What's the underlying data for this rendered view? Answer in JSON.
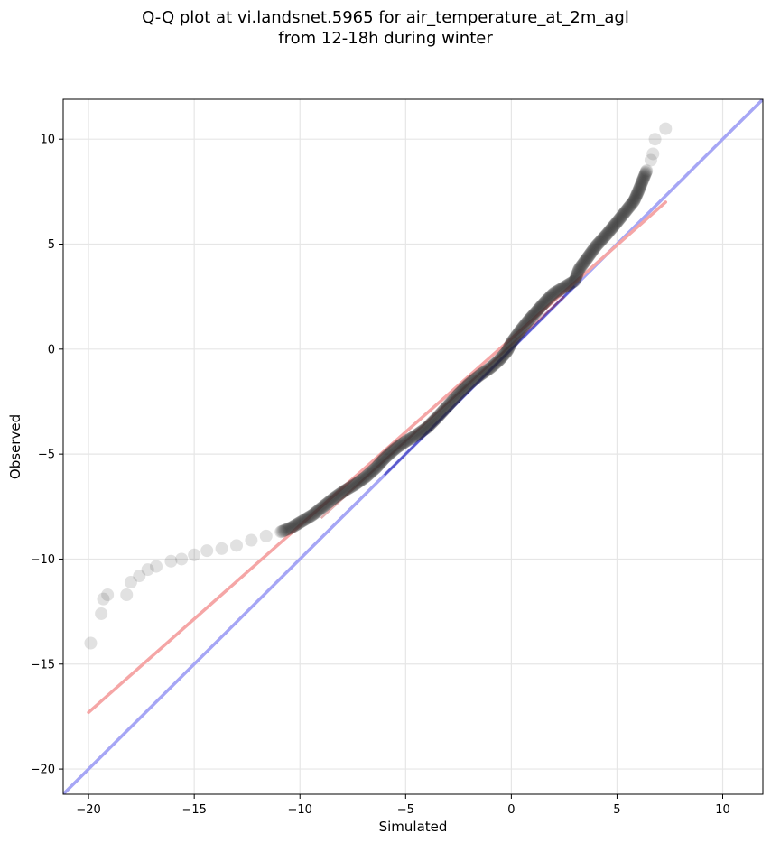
{
  "chart_data": {
    "type": "scatter",
    "title_line1": "Q-Q plot at vi.landsnet.5965 for air_temperature_at_2m_agl",
    "title_line2": "from 12-18h during winter",
    "xlabel": "Simulated",
    "ylabel": "Observed",
    "xlim": [
      -21.2,
      11.9
    ],
    "ylim": [
      -21.2,
      11.9
    ],
    "xticks": [
      -20,
      -15,
      -10,
      -5,
      0,
      5,
      10
    ],
    "yticks": [
      -20,
      -15,
      -10,
      -5,
      0,
      5,
      10
    ],
    "xtick_labels": [
      "−20",
      "−15",
      "−10",
      "−5",
      "0",
      "5",
      "10"
    ],
    "ytick_labels": [
      "−20",
      "−15",
      "−10",
      "−5",
      "0",
      "5",
      "10"
    ],
    "grid": true,
    "colors": {
      "points": "#2b2b2b",
      "identity_line": "#a6a6f5",
      "fit_line": "#f5a6a6",
      "central_line": "#1a1aaa",
      "central_fit": "#aa1a1a"
    },
    "quantile_points": [
      [
        -19.9,
        -14.0
      ],
      [
        -19.4,
        -12.6
      ],
      [
        -19.3,
        -11.9
      ],
      [
        -19.1,
        -11.7
      ],
      [
        -18.2,
        -11.7
      ],
      [
        -18.0,
        -11.1
      ],
      [
        -17.6,
        -10.8
      ],
      [
        -17.2,
        -10.5
      ],
      [
        -16.8,
        -10.35
      ],
      [
        -16.1,
        -10.1
      ],
      [
        -15.6,
        -10.0
      ],
      [
        -15.0,
        -9.8
      ],
      [
        -14.4,
        -9.6
      ],
      [
        -13.7,
        -9.5
      ],
      [
        -13.0,
        -9.35
      ],
      [
        -12.3,
        -9.1
      ],
      [
        -11.6,
        -8.9
      ],
      [
        -10.9,
        -8.7
      ],
      [
        -10.4,
        -8.5
      ],
      [
        -9.9,
        -8.2
      ],
      [
        -9.4,
        -7.9
      ],
      [
        -8.9,
        -7.5
      ],
      [
        -8.4,
        -7.1
      ],
      [
        -7.9,
        -6.75
      ],
      [
        -7.4,
        -6.45
      ],
      [
        -6.9,
        -6.1
      ],
      [
        -6.4,
        -5.65
      ],
      [
        -6.0,
        -5.2
      ],
      [
        -5.5,
        -4.75
      ],
      [
        -5.0,
        -4.4
      ],
      [
        -4.5,
        -4.1
      ],
      [
        -4.0,
        -3.75
      ],
      [
        -3.5,
        -3.25
      ],
      [
        -3.0,
        -2.7
      ],
      [
        -2.5,
        -2.15
      ],
      [
        -2.0,
        -1.65
      ],
      [
        -1.5,
        -1.25
      ],
      [
        -1.0,
        -0.9
      ],
      [
        -0.6,
        -0.55
      ],
      [
        -0.2,
        -0.1
      ],
      [
        0.0,
        0.3
      ],
      [
        0.4,
        0.85
      ],
      [
        0.8,
        1.35
      ],
      [
        1.2,
        1.8
      ],
      [
        1.6,
        2.25
      ],
      [
        2.0,
        2.65
      ],
      [
        2.5,
        2.95
      ],
      [
        3.0,
        3.25
      ],
      [
        3.2,
        3.8
      ],
      [
        3.6,
        4.35
      ],
      [
        4.0,
        4.9
      ],
      [
        4.5,
        5.45
      ],
      [
        5.0,
        6.05
      ],
      [
        5.4,
        6.55
      ],
      [
        5.8,
        7.05
      ],
      [
        6.0,
        7.5
      ],
      [
        6.2,
        8.0
      ],
      [
        6.4,
        8.5
      ],
      [
        6.6,
        9.0
      ],
      [
        6.7,
        9.3
      ],
      [
        6.8,
        10.0
      ],
      [
        7.3,
        10.5
      ]
    ],
    "fit_line": [
      [
        -20.0,
        -17.3
      ],
      [
        7.3,
        7.0
      ]
    ],
    "identity_line": [
      [
        -21.2,
        -21.2
      ],
      [
        11.9,
        11.9
      ]
    ]
  }
}
